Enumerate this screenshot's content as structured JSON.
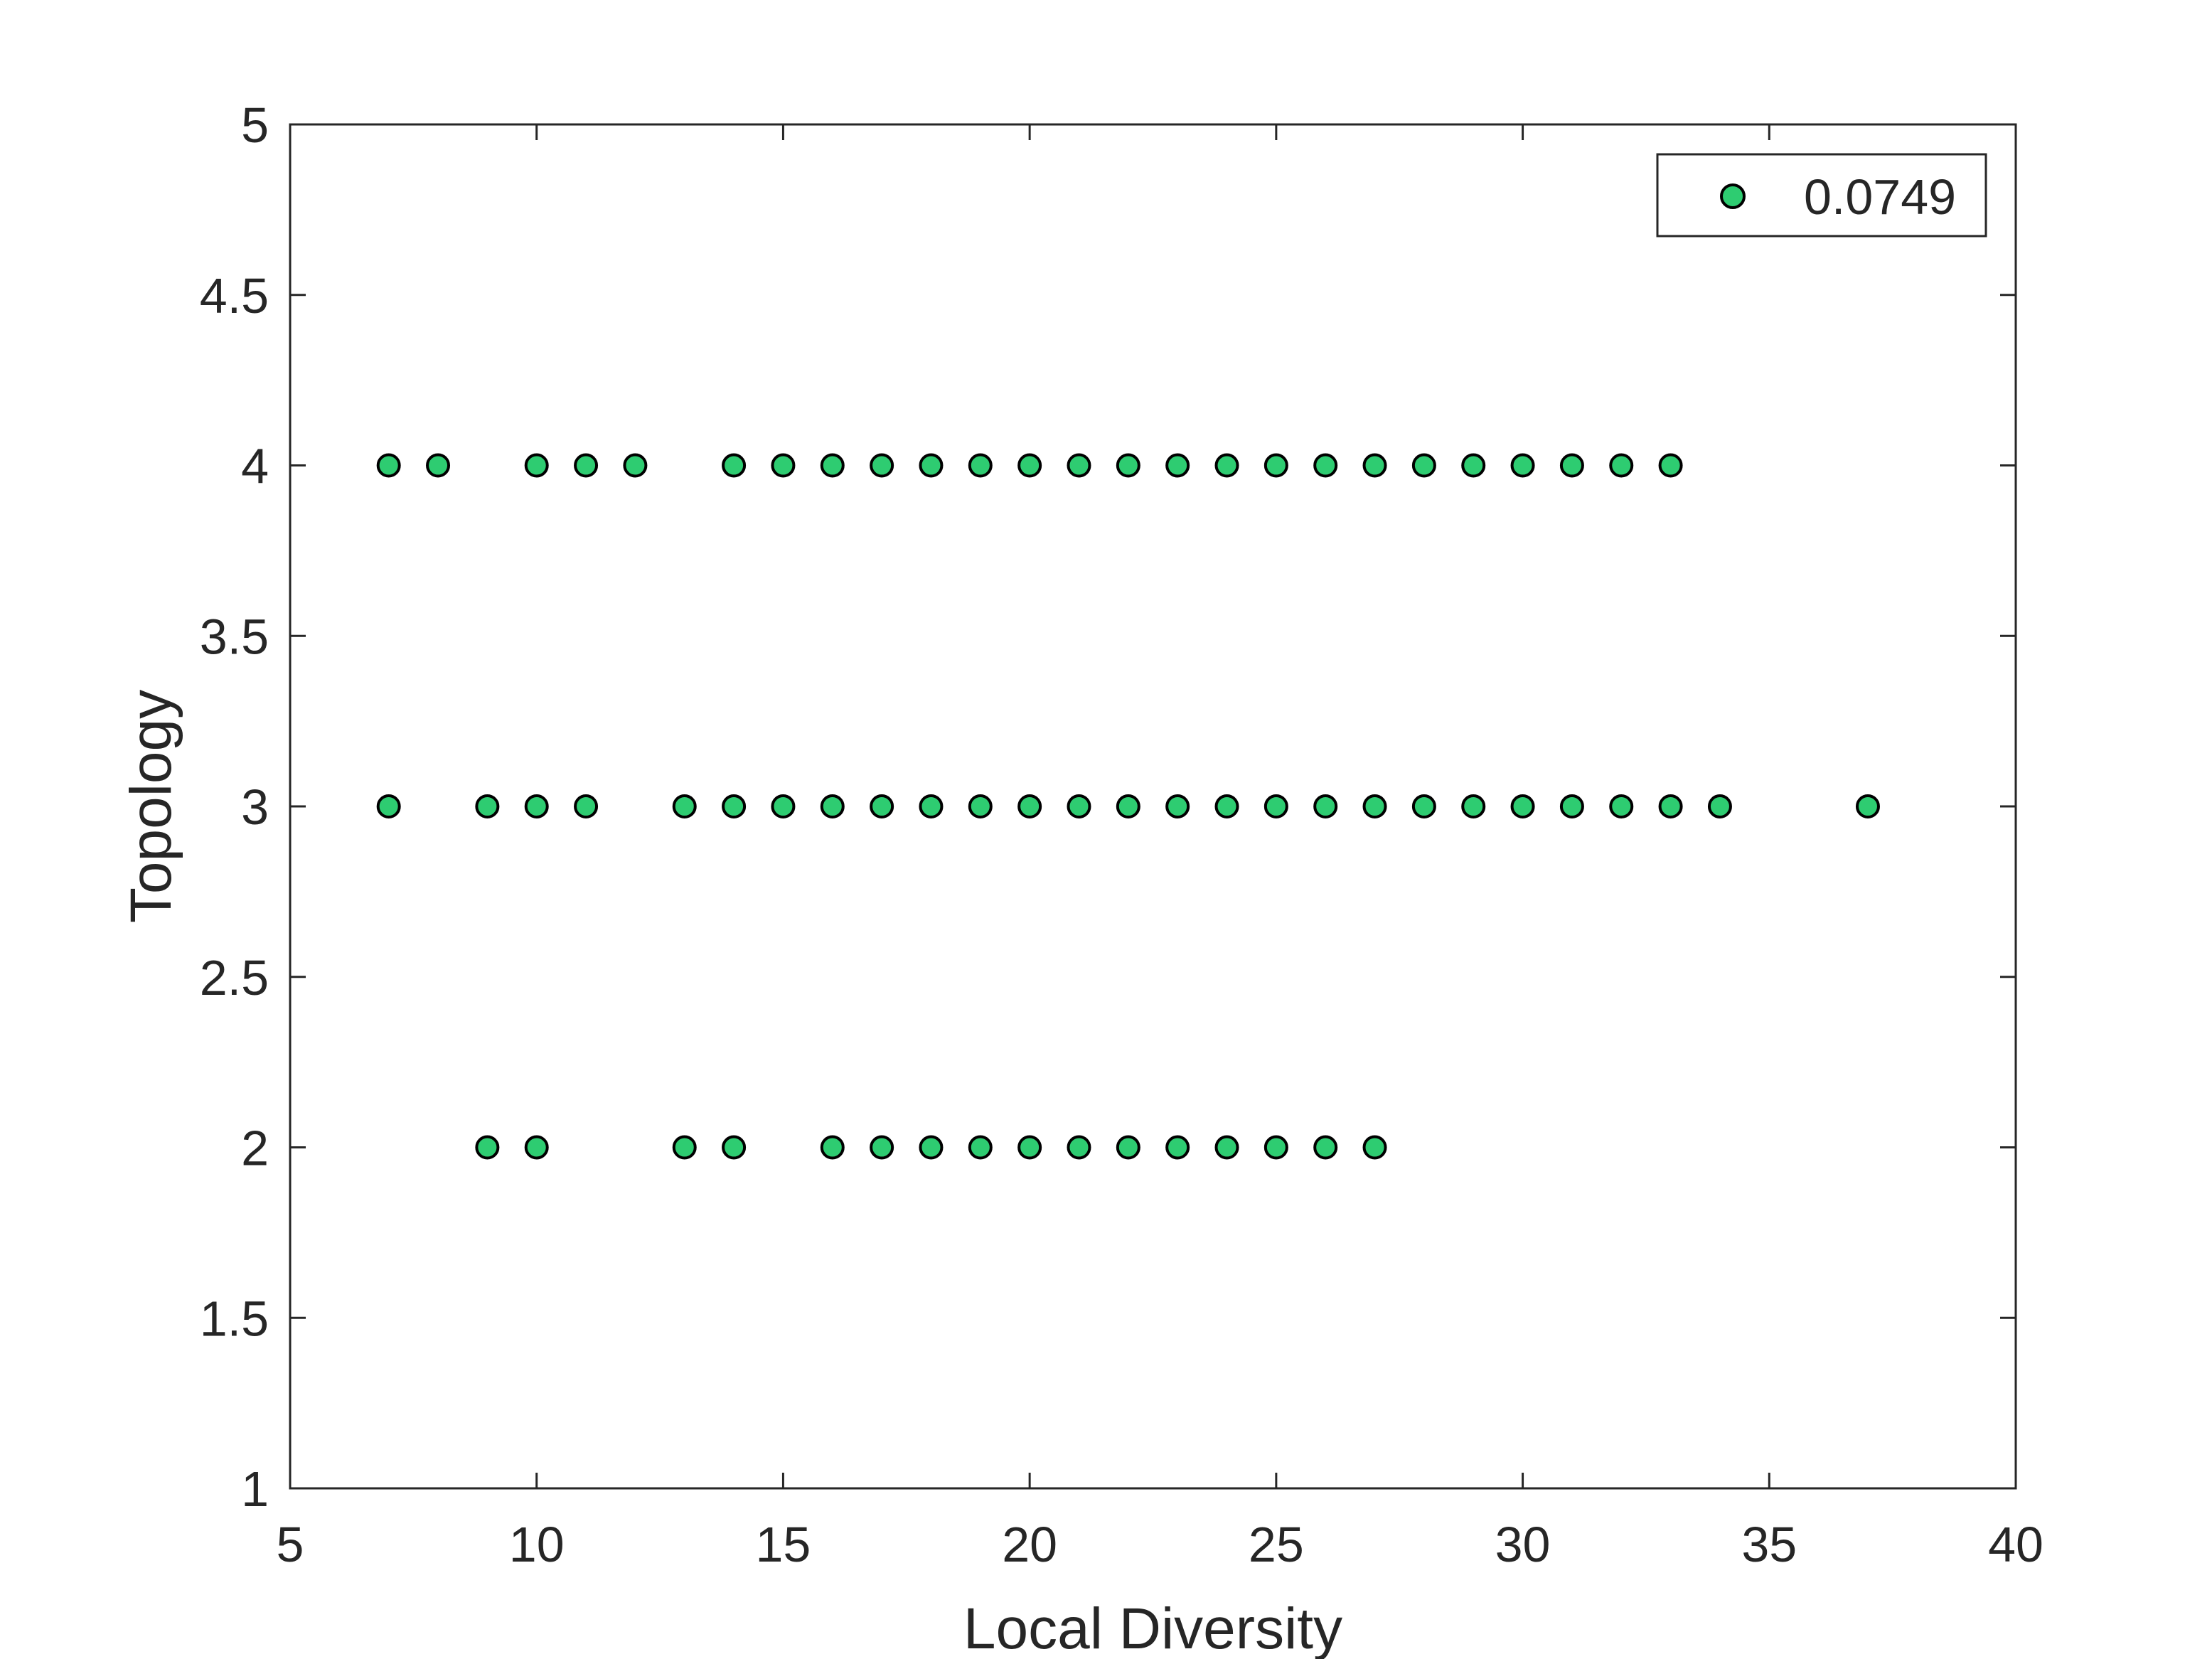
{
  "chart_data": {
    "type": "scatter",
    "title": "",
    "xlabel": "Local Diversity",
    "ylabel": "Topology",
    "xlim": [
      5,
      40
    ],
    "ylim": [
      1,
      5
    ],
    "xticks": [
      "5",
      "10",
      "15",
      "20",
      "25",
      "30",
      "35",
      "40"
    ],
    "yticks": [
      "1",
      "1.5",
      "2",
      "2.5",
      "3",
      "3.5",
      "4",
      "4.5",
      "5"
    ],
    "grid": false,
    "legend_position": "top-right",
    "series": [
      {
        "name": "0.0749",
        "color": "#2ecc71",
        "edge_color": "#000000",
        "points": [
          [
            7,
            4
          ],
          [
            8,
            4
          ],
          [
            10,
            4
          ],
          [
            11,
            4
          ],
          [
            12,
            4
          ],
          [
            14,
            4
          ],
          [
            15,
            4
          ],
          [
            16,
            4
          ],
          [
            17,
            4
          ],
          [
            18,
            4
          ],
          [
            19,
            4
          ],
          [
            20,
            4
          ],
          [
            21,
            4
          ],
          [
            22,
            4
          ],
          [
            23,
            4
          ],
          [
            24,
            4
          ],
          [
            25,
            4
          ],
          [
            26,
            4
          ],
          [
            27,
            4
          ],
          [
            28,
            4
          ],
          [
            29,
            4
          ],
          [
            30,
            4
          ],
          [
            31,
            4
          ],
          [
            32,
            4
          ],
          [
            33,
            4
          ],
          [
            7,
            3
          ],
          [
            9,
            3
          ],
          [
            10,
            3
          ],
          [
            11,
            3
          ],
          [
            13,
            3
          ],
          [
            14,
            3
          ],
          [
            15,
            3
          ],
          [
            16,
            3
          ],
          [
            17,
            3
          ],
          [
            18,
            3
          ],
          [
            19,
            3
          ],
          [
            20,
            3
          ],
          [
            21,
            3
          ],
          [
            22,
            3
          ],
          [
            23,
            3
          ],
          [
            24,
            3
          ],
          [
            25,
            3
          ],
          [
            26,
            3
          ],
          [
            27,
            3
          ],
          [
            28,
            3
          ],
          [
            29,
            3
          ],
          [
            30,
            3
          ],
          [
            31,
            3
          ],
          [
            32,
            3
          ],
          [
            33,
            3
          ],
          [
            34,
            3
          ],
          [
            37,
            3
          ],
          [
            9,
            2
          ],
          [
            10,
            2
          ],
          [
            13,
            2
          ],
          [
            14,
            2
          ],
          [
            16,
            2
          ],
          [
            17,
            2
          ],
          [
            18,
            2
          ],
          [
            19,
            2
          ],
          [
            20,
            2
          ],
          [
            21,
            2
          ],
          [
            22,
            2
          ],
          [
            23,
            2
          ],
          [
            24,
            2
          ],
          [
            25,
            2
          ],
          [
            26,
            2
          ],
          [
            27,
            2
          ]
        ]
      }
    ]
  }
}
